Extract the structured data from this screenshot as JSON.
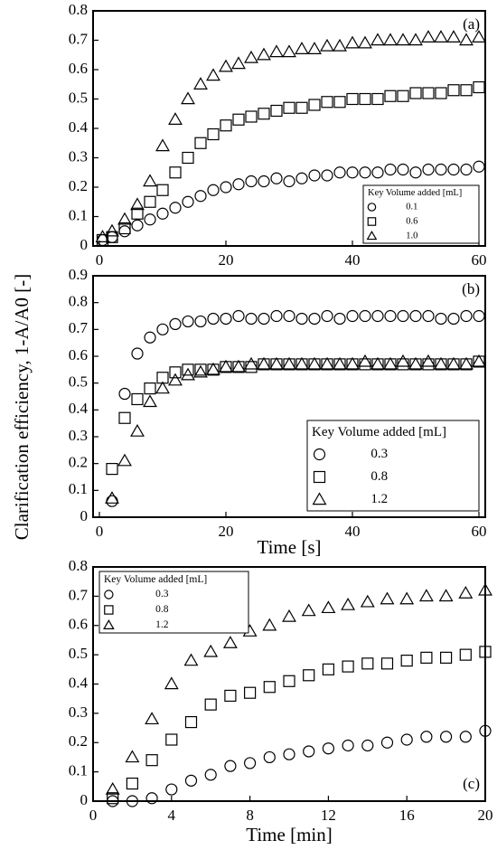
{
  "chart_data": [
    {
      "type": "scatter",
      "annotation": "(a)",
      "x": [
        0.5,
        2,
        4,
        6,
        8,
        10,
        12,
        14,
        16,
        18,
        20,
        22,
        24,
        26,
        28,
        30,
        32,
        34,
        36,
        38,
        40,
        42,
        44,
        46,
        48,
        50,
        52,
        54,
        56,
        58,
        60
      ],
      "series": [
        {
          "name": "0.1",
          "marker": "circle",
          "color": "#000000",
          "values": [
            0.02,
            0.03,
            0.05,
            0.07,
            0.09,
            0.11,
            0.13,
            0.15,
            0.17,
            0.19,
            0.2,
            0.21,
            0.22,
            0.22,
            0.23,
            0.22,
            0.23,
            0.24,
            0.24,
            0.25,
            0.25,
            0.25,
            0.25,
            0.26,
            0.26,
            0.25,
            0.26,
            0.26,
            0.26,
            0.26,
            0.27
          ]
        },
        {
          "name": "0.6",
          "marker": "square",
          "color": "#000000",
          "values": [
            0.02,
            0.03,
            0.06,
            0.11,
            0.15,
            0.19,
            0.25,
            0.3,
            0.35,
            0.38,
            0.41,
            0.43,
            0.44,
            0.45,
            0.46,
            0.47,
            0.47,
            0.48,
            0.49,
            0.49,
            0.5,
            0.5,
            0.5,
            0.51,
            0.51,
            0.52,
            0.52,
            0.52,
            0.53,
            0.53,
            0.54
          ]
        },
        {
          "name": "1.0",
          "marker": "triangle",
          "color": "#000000",
          "values": [
            0.03,
            0.05,
            0.09,
            0.14,
            0.22,
            0.34,
            0.43,
            0.5,
            0.55,
            0.58,
            0.61,
            0.62,
            0.64,
            0.65,
            0.66,
            0.66,
            0.67,
            0.67,
            0.68,
            0.68,
            0.69,
            0.69,
            0.7,
            0.7,
            0.7,
            0.7,
            0.71,
            0.71,
            0.71,
            0.7,
            0.71
          ]
        }
      ],
      "legend_title": "Key Volume added [mL]",
      "legend": "lower right",
      "xlim": [
        -1,
        61
      ],
      "xticks": [
        0,
        20,
        40,
        60
      ],
      "ylim": [
        0,
        0.8
      ],
      "yticks": [
        0,
        0.1,
        0.2,
        0.3,
        0.4,
        0.5,
        0.6,
        0.7,
        0.8
      ]
    },
    {
      "type": "scatter",
      "annotation": "(b)",
      "xlabel": "Time [s]",
      "ylabel": "Clarification efficiency, 1-A/A0 [-]",
      "x": [
        2,
        4,
        6,
        8,
        10,
        12,
        14,
        16,
        18,
        20,
        22,
        24,
        26,
        28,
        30,
        32,
        34,
        36,
        38,
        40,
        42,
        44,
        46,
        48,
        50,
        52,
        54,
        56,
        58,
        60
      ],
      "series": [
        {
          "name": "0.3",
          "marker": "circle",
          "color": "#000000",
          "values": [
            0.06,
            0.46,
            0.61,
            0.67,
            0.7,
            0.72,
            0.73,
            0.73,
            0.74,
            0.74,
            0.75,
            0.74,
            0.74,
            0.75,
            0.75,
            0.74,
            0.74,
            0.75,
            0.74,
            0.75,
            0.75,
            0.75,
            0.75,
            0.75,
            0.75,
            0.75,
            0.74,
            0.74,
            0.75,
            0.75
          ]
        },
        {
          "name": "0.8",
          "marker": "square",
          "color": "#000000",
          "values": [
            0.18,
            0.37,
            0.44,
            0.48,
            0.52,
            0.54,
            0.55,
            0.55,
            0.55,
            0.56,
            0.56,
            0.56,
            0.57,
            0.57,
            0.57,
            0.57,
            0.57,
            0.57,
            0.57,
            0.57,
            0.57,
            0.57,
            0.57,
            0.57,
            0.57,
            0.57,
            0.57,
            0.57,
            0.57,
            0.58
          ]
        },
        {
          "name": "1.2",
          "marker": "triangle",
          "color": "#000000",
          "values": [
            0.07,
            0.21,
            0.32,
            0.43,
            0.48,
            0.51,
            0.53,
            0.54,
            0.55,
            0.56,
            0.56,
            0.57,
            0.57,
            0.57,
            0.57,
            0.57,
            0.57,
            0.57,
            0.57,
            0.57,
            0.58,
            0.57,
            0.57,
            0.58,
            0.57,
            0.58,
            0.57,
            0.57,
            0.57,
            0.58
          ]
        }
      ],
      "legend_title": "Key Volume added [mL]",
      "legend": "lower right",
      "xlim": [
        -1,
        61
      ],
      "xticks": [
        0,
        20,
        40,
        60
      ],
      "ylim": [
        0,
        0.9
      ],
      "yticks": [
        0,
        0.1,
        0.2,
        0.3,
        0.4,
        0.5,
        0.6,
        0.7,
        0.8,
        0.9
      ]
    },
    {
      "type": "scatter",
      "annotation": "(c)",
      "xlabel": "Time [min]",
      "x": [
        1,
        2,
        3,
        4,
        5,
        6,
        7,
        8,
        9,
        10,
        11,
        12,
        13,
        14,
        15,
        16,
        17,
        18,
        19,
        20
      ],
      "series": [
        {
          "name": "0.3",
          "marker": "circle",
          "color": "#000000",
          "values": [
            0,
            0,
            0.01,
            0.04,
            0.07,
            0.09,
            0.12,
            0.13,
            0.15,
            0.16,
            0.17,
            0.18,
            0.19,
            0.19,
            0.2,
            0.21,
            0.22,
            0.22,
            0.22,
            0.24
          ]
        },
        {
          "name": "0.8",
          "marker": "square",
          "color": "#000000",
          "values": [
            0.01,
            0.06,
            0.14,
            0.21,
            0.27,
            0.33,
            0.36,
            0.37,
            0.39,
            0.41,
            0.43,
            0.45,
            0.46,
            0.47,
            0.47,
            0.48,
            0.49,
            0.49,
            0.5,
            0.51
          ]
        },
        {
          "name": "1.2",
          "marker": "triangle",
          "color": "#000000",
          "values": [
            0.04,
            0.15,
            0.28,
            0.4,
            0.48,
            0.51,
            0.54,
            0.58,
            0.6,
            0.63,
            0.65,
            0.66,
            0.67,
            0.68,
            0.69,
            0.69,
            0.7,
            0.7,
            0.71,
            0.72
          ]
        }
      ],
      "legend_title": "Key Volume added [mL]",
      "legend": "upper left",
      "xlim": [
        0,
        20
      ],
      "xticks": [
        0,
        4,
        8,
        12,
        16,
        20
      ],
      "ylim": [
        0,
        0.8
      ],
      "yticks": [
        0,
        0.1,
        0.2,
        0.3,
        0.4,
        0.5,
        0.6,
        0.7,
        0.8
      ]
    }
  ]
}
